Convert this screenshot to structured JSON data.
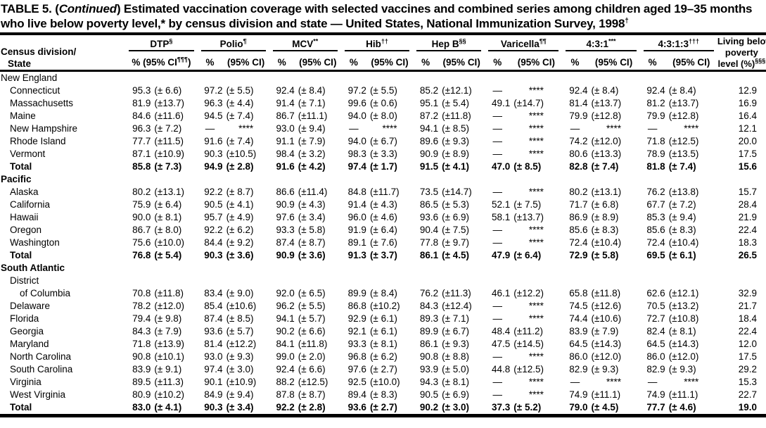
{
  "title": {
    "prefix": "TABLE 5. (",
    "continued": "Continued",
    "suffix": ") Estimated vaccination coverage with selected vaccines and combined series among children aged 19–35 months who live below poverty level,* by census division and state — United States, National Immunization Survey, 1998",
    "sup": "†"
  },
  "header": {
    "state_header": {
      "line1": "Census division/",
      "line2": "State"
    },
    "poverty_header": {
      "line1": "Living below",
      "line2": "poverty",
      "line3_pre": "level (%)",
      "line3_sup": "§§§"
    },
    "pct_label": "%",
    "ci_label": "(95% CI)",
    "dtp_sub": {
      "pre": "% (95% CI",
      "sup": "¶¶¶",
      "post": ")"
    },
    "groups": [
      {
        "label": "DTP",
        "sup": "§"
      },
      {
        "label": "Polio",
        "sup": "¶"
      },
      {
        "label": "MCV",
        "sup": "**"
      },
      {
        "label": "Hib",
        "sup": "††"
      },
      {
        "label": "Hep B",
        "sup": "§§"
      },
      {
        "label": "Varicella",
        "sup": "¶¶"
      },
      {
        "label": "4:3:1",
        "sup": "***"
      },
      {
        "label": "4:3:1:3",
        "sup": "†††"
      }
    ]
  },
  "sections": [
    {
      "name": "New England",
      "bold": false,
      "rows": [
        {
          "state": "Connecticut",
          "bold": false,
          "cells": [
            [
              "95.3",
              "(± 6.6)"
            ],
            [
              "97.2",
              "(± 5.5)"
            ],
            [
              "92.4",
              "(± 8.4)"
            ],
            [
              "97.2",
              "(± 5.5)"
            ],
            [
              "85.2",
              "(±12.1)"
            ],
            [
              "—",
              "****"
            ],
            [
              "92.4",
              "(± 8.4)"
            ],
            [
              "92.4",
              "(± 8.4)"
            ]
          ],
          "poverty": "12.9"
        },
        {
          "state": "Massachusetts",
          "bold": false,
          "cells": [
            [
              "81.9",
              "(±13.7)"
            ],
            [
              "96.3",
              "(± 4.4)"
            ],
            [
              "91.4",
              "(± 7.1)"
            ],
            [
              "99.6",
              "(± 0.6)"
            ],
            [
              "95.1",
              "(± 5.4)"
            ],
            [
              "49.1",
              "(±14.7)"
            ],
            [
              "81.4",
              "(±13.7)"
            ],
            [
              "81.2",
              "(±13.7)"
            ]
          ],
          "poverty": "16.9"
        },
        {
          "state": "Maine",
          "bold": false,
          "cells": [
            [
              "84.6",
              "(±11.6)"
            ],
            [
              "94.5",
              "(± 7.4)"
            ],
            [
              "86.7",
              "(±11.1)"
            ],
            [
              "94.0",
              "(± 8.0)"
            ],
            [
              "87.2",
              "(±11.8)"
            ],
            [
              "—",
              "****"
            ],
            [
              "79.9",
              "(±12.8)"
            ],
            [
              "79.9",
              "(±12.8)"
            ]
          ],
          "poverty": "16.4"
        },
        {
          "state": "New Hampshire",
          "bold": false,
          "cells": [
            [
              "96.3",
              "(± 7.2)"
            ],
            [
              "—",
              "****"
            ],
            [
              "93.0",
              "(± 9.4)"
            ],
            [
              "—",
              "****"
            ],
            [
              "94.1",
              "(± 8.5)"
            ],
            [
              "—",
              "****"
            ],
            [
              "—",
              "****"
            ],
            [
              "—",
              "****"
            ]
          ],
          "poverty": "12.1"
        },
        {
          "state": "Rhode Island",
          "bold": false,
          "cells": [
            [
              "77.7",
              "(±11.5)"
            ],
            [
              "91.6",
              "(± 7.4)"
            ],
            [
              "91.1",
              "(± 7.9)"
            ],
            [
              "94.0",
              "(± 6.7)"
            ],
            [
              "89.6",
              "(± 9.3)"
            ],
            [
              "—",
              "****"
            ],
            [
              "74.2",
              "(±12.0)"
            ],
            [
              "71.8",
              "(±12.5)"
            ]
          ],
          "poverty": "20.0"
        },
        {
          "state": "Vermont",
          "bold": false,
          "cells": [
            [
              "87.1",
              "(±10.9)"
            ],
            [
              "90.3",
              "(±10.5)"
            ],
            [
              "98.4",
              "(± 3.2)"
            ],
            [
              "98.3",
              "(± 3.3)"
            ],
            [
              "90.9",
              "(± 8.9)"
            ],
            [
              "—",
              "****"
            ],
            [
              "80.6",
              "(±13.3)"
            ],
            [
              "78.9",
              "(±13.5)"
            ]
          ],
          "poverty": "17.5"
        },
        {
          "state": "Total",
          "bold": true,
          "cells": [
            [
              "85.8",
              "(± 7.3)"
            ],
            [
              "94.9",
              "(± 2.8)"
            ],
            [
              "91.6",
              "(± 4.2)"
            ],
            [
              "97.4",
              "(± 1.7)"
            ],
            [
              "91.5",
              "(± 4.1)"
            ],
            [
              "47.0",
              "(± 8.5)"
            ],
            [
              "82.8",
              "(± 7.4)"
            ],
            [
              "81.8",
              "(± 7.4)"
            ]
          ],
          "poverty": "15.6"
        }
      ]
    },
    {
      "name": "Pacific",
      "bold": true,
      "rows": [
        {
          "state": "Alaska",
          "bold": false,
          "cells": [
            [
              "80.2",
              "(±13.1)"
            ],
            [
              "92.2",
              "(± 8.7)"
            ],
            [
              "86.6",
              "(±11.4)"
            ],
            [
              "84.8",
              "(±11.7)"
            ],
            [
              "73.5",
              "(±14.7)"
            ],
            [
              "—",
              "****"
            ],
            [
              "80.2",
              "(±13.1)"
            ],
            [
              "76.2",
              "(±13.8)"
            ]
          ],
          "poverty": "15.7"
        },
        {
          "state": "California",
          "bold": false,
          "cells": [
            [
              "75.9",
              "(± 6.4)"
            ],
            [
              "90.5",
              "(± 4.1)"
            ],
            [
              "90.9",
              "(± 4.3)"
            ],
            [
              "91.4",
              "(± 4.3)"
            ],
            [
              "86.5",
              "(± 5.3)"
            ],
            [
              "52.1",
              "(± 7.5)"
            ],
            [
              "71.7",
              "(± 6.8)"
            ],
            [
              "67.7",
              "(± 7.2)"
            ]
          ],
          "poverty": "28.4"
        },
        {
          "state": "Hawaii",
          "bold": false,
          "cells": [
            [
              "90.0",
              "(± 8.1)"
            ],
            [
              "95.7",
              "(± 4.9)"
            ],
            [
              "97.6",
              "(± 3.4)"
            ],
            [
              "96.0",
              "(± 4.6)"
            ],
            [
              "93.6",
              "(± 6.9)"
            ],
            [
              "58.1",
              "(±13.7)"
            ],
            [
              "86.9",
              "(± 8.9)"
            ],
            [
              "85.3",
              "(± 9.4)"
            ]
          ],
          "poverty": "21.9"
        },
        {
          "state": "Oregon",
          "bold": false,
          "cells": [
            [
              "86.7",
              "(± 8.0)"
            ],
            [
              "92.2",
              "(± 6.2)"
            ],
            [
              "93.3",
              "(± 5.8)"
            ],
            [
              "91.9",
              "(± 6.4)"
            ],
            [
              "90.4",
              "(± 7.5)"
            ],
            [
              "—",
              "****"
            ],
            [
              "85.6",
              "(± 8.3)"
            ],
            [
              "85.6",
              "(± 8.3)"
            ]
          ],
          "poverty": "22.4"
        },
        {
          "state": "Washington",
          "bold": false,
          "cells": [
            [
              "75.6",
              "(±10.0)"
            ],
            [
              "84.4",
              "(± 9.2)"
            ],
            [
              "87.4",
              "(± 8.7)"
            ],
            [
              "89.1",
              "(± 7.6)"
            ],
            [
              "77.8",
              "(± 9.7)"
            ],
            [
              "—",
              "****"
            ],
            [
              "72.4",
              "(±10.4)"
            ],
            [
              "72.4",
              "(±10.4)"
            ]
          ],
          "poverty": "18.3"
        },
        {
          "state": "Total",
          "bold": true,
          "cells": [
            [
              "76.8",
              "(± 5.4)"
            ],
            [
              "90.3",
              "(± 3.6)"
            ],
            [
              "90.9",
              "(± 3.6)"
            ],
            [
              "91.3",
              "(± 3.7)"
            ],
            [
              "86.1",
              "(± 4.5)"
            ],
            [
              "47.9",
              "(± 6.4)"
            ],
            [
              "72.9",
              "(± 5.8)"
            ],
            [
              "69.5",
              "(± 6.1)"
            ]
          ],
          "poverty": "26.5"
        }
      ]
    },
    {
      "name": "South Atlantic",
      "bold": true,
      "rows": [
        {
          "state": "District",
          "state2": "of Columbia",
          "bold": false,
          "cells": [
            [
              "70.8",
              "(±11.8)"
            ],
            [
              "83.4",
              "(± 9.0)"
            ],
            [
              "92.0",
              "(± 6.5)"
            ],
            [
              "89.9",
              "(± 8.4)"
            ],
            [
              "76.2",
              "(±11.3)"
            ],
            [
              "46.1",
              "(±12.2)"
            ],
            [
              "65.8",
              "(±11.8)"
            ],
            [
              "62.6",
              "(±12.1)"
            ]
          ],
          "poverty": "32.9"
        },
        {
          "state": "Delaware",
          "bold": false,
          "cells": [
            [
              "78.2",
              "(±12.0)"
            ],
            [
              "85.4",
              "(±10.6)"
            ],
            [
              "96.2",
              "(± 5.5)"
            ],
            [
              "86.8",
              "(±10.2)"
            ],
            [
              "84.3",
              "(±12.4)"
            ],
            [
              "—",
              "****"
            ],
            [
              "74.5",
              "(±12.6)"
            ],
            [
              "70.5",
              "(±13.2)"
            ]
          ],
          "poverty": "21.7"
        },
        {
          "state": "Florida",
          "bold": false,
          "cells": [
            [
              "79.4",
              "(± 9.8)"
            ],
            [
              "87.4",
              "(± 8.5)"
            ],
            [
              "94.1",
              "(± 5.7)"
            ],
            [
              "92.9",
              "(± 6.1)"
            ],
            [
              "89.3",
              "(± 7.1)"
            ],
            [
              "—",
              "****"
            ],
            [
              "74.4",
              "(±10.6)"
            ],
            [
              "72.7",
              "(±10.8)"
            ]
          ],
          "poverty": "18.4"
        },
        {
          "state": "Georgia",
          "bold": false,
          "cells": [
            [
              "84.3",
              "(± 7.9)"
            ],
            [
              "93.6",
              "(± 5.7)"
            ],
            [
              "90.2",
              "(± 6.6)"
            ],
            [
              "92.1",
              "(± 6.1)"
            ],
            [
              "89.9",
              "(± 6.7)"
            ],
            [
              "48.4",
              "(±11.2)"
            ],
            [
              "83.9",
              "(± 7.9)"
            ],
            [
              "82.4",
              "(± 8.1)"
            ]
          ],
          "poverty": "22.4"
        },
        {
          "state": "Maryland",
          "bold": false,
          "cells": [
            [
              "71.8",
              "(±13.9)"
            ],
            [
              "81.4",
              "(±12.2)"
            ],
            [
              "84.1",
              "(±11.8)"
            ],
            [
              "93.3",
              "(± 8.1)"
            ],
            [
              "86.1",
              "(± 9.3)"
            ],
            [
              "47.5",
              "(±14.5)"
            ],
            [
              "64.5",
              "(±14.3)"
            ],
            [
              "64.5",
              "(±14.3)"
            ]
          ],
          "poverty": "12.0"
        },
        {
          "state": "North Carolina",
          "bold": false,
          "cells": [
            [
              "90.8",
              "(±10.1)"
            ],
            [
              "93.0",
              "(± 9.3)"
            ],
            [
              "99.0",
              "(± 2.0)"
            ],
            [
              "96.8",
              "(± 6.2)"
            ],
            [
              "90.8",
              "(± 8.8)"
            ],
            [
              "—",
              "****"
            ],
            [
              "86.0",
              "(±12.0)"
            ],
            [
              "86.0",
              "(±12.0)"
            ]
          ],
          "poverty": "17.5"
        },
        {
          "state": "South Carolina",
          "bold": false,
          "cells": [
            [
              "83.9",
              "(± 9.1)"
            ],
            [
              "97.4",
              "(± 3.0)"
            ],
            [
              "92.4",
              "(± 6.6)"
            ],
            [
              "97.6",
              "(± 2.7)"
            ],
            [
              "93.9",
              "(± 5.0)"
            ],
            [
              "44.8",
              "(±12.5)"
            ],
            [
              "82.9",
              "(± 9.3)"
            ],
            [
              "82.9",
              "(± 9.3)"
            ]
          ],
          "poverty": "29.2"
        },
        {
          "state": "Virginia",
          "bold": false,
          "cells": [
            [
              "89.5",
              "(±11.3)"
            ],
            [
              "90.1",
              "(±10.9)"
            ],
            [
              "88.2",
              "(±12.5)"
            ],
            [
              "92.5",
              "(±10.0)"
            ],
            [
              "94.3",
              "(± 8.1)"
            ],
            [
              "—",
              "****"
            ],
            [
              "—",
              "****"
            ],
            [
              "—",
              "****"
            ]
          ],
          "poverty": "15.3"
        },
        {
          "state": "West Virginia",
          "bold": false,
          "cells": [
            [
              "80.9",
              "(±10.2)"
            ],
            [
              "84.9",
              "(± 9.4)"
            ],
            [
              "87.8",
              "(± 8.7)"
            ],
            [
              "89.4",
              "(± 8.3)"
            ],
            [
              "90.5",
              "(± 6.9)"
            ],
            [
              "—",
              "****"
            ],
            [
              "74.9",
              "(±11.1)"
            ],
            [
              "74.9",
              "(±11.1)"
            ]
          ],
          "poverty": "22.7"
        },
        {
          "state": "Total",
          "bold": true,
          "cells": [
            [
              "83.0",
              "(± 4.1)"
            ],
            [
              "90.3",
              "(± 3.4)"
            ],
            [
              "92.2",
              "(± 2.8)"
            ],
            [
              "93.6",
              "(± 2.7)"
            ],
            [
              "90.2",
              "(± 3.0)"
            ],
            [
              "37.3",
              "(± 5.2)"
            ],
            [
              "79.0",
              "(± 4.5)"
            ],
            [
              "77.7",
              "(± 4.6)"
            ]
          ],
          "poverty": "19.0"
        }
      ]
    }
  ]
}
